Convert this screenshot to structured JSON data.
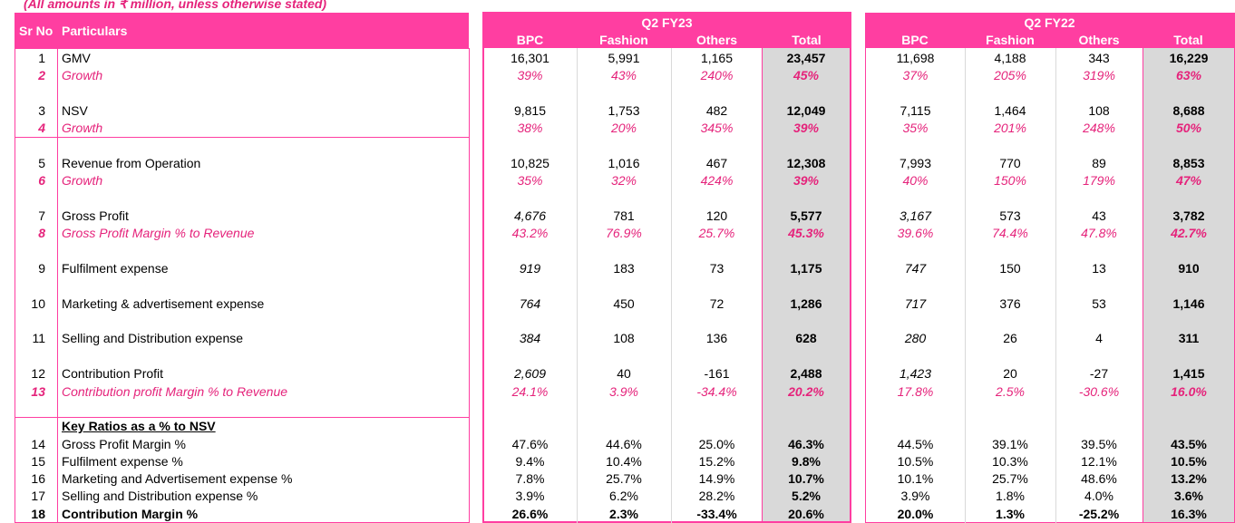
{
  "note": "(All amounts in ₹ million, unless otherwise stated)",
  "header": {
    "sr_no": "Sr No",
    "particulars": "Particulars",
    "blocks": [
      {
        "title": "Q2 FY23",
        "columns": [
          "BPC",
          "Fashion",
          "Others",
          "Total"
        ]
      },
      {
        "title": "Q2 FY22",
        "columns": [
          "BPC",
          "Fashion",
          "Others",
          "Total"
        ]
      }
    ]
  },
  "rows": [
    {
      "sr": "1",
      "label": "GMV",
      "style": "normal",
      "fy23": [
        "16,301",
        "5,991",
        "1,165",
        "23,457"
      ],
      "fy22": [
        "11,698",
        "4,188",
        "343",
        "16,229"
      ]
    },
    {
      "sr": "2",
      "label": "Growth",
      "style": "pink",
      "fy23": [
        "39%",
        "43%",
        "240%",
        "45%"
      ],
      "fy22": [
        "37%",
        "205%",
        "319%",
        "63%"
      ]
    },
    {
      "sr": "3",
      "label": "NSV",
      "style": "normal",
      "fy23": [
        "9,815",
        "1,753",
        "482",
        "12,049"
      ],
      "fy22": [
        "7,115",
        "1,464",
        "108",
        "8,688"
      ]
    },
    {
      "sr": "4",
      "label": "Growth",
      "style": "pink",
      "fy23": [
        "38%",
        "20%",
        "345%",
        "39%"
      ],
      "fy22": [
        "35%",
        "201%",
        "248%",
        "50%"
      ]
    },
    {
      "sr": "5",
      "label": "Revenue from Operation",
      "style": "normal",
      "fy23": [
        "10,825",
        "1,016",
        "467",
        "12,308"
      ],
      "fy22": [
        "7,993",
        "770",
        "89",
        "8,853"
      ]
    },
    {
      "sr": "6",
      "label": "Growth",
      "style": "pink",
      "fy23": [
        "35%",
        "32%",
        "424%",
        "39%"
      ],
      "fy22": [
        "40%",
        "150%",
        "179%",
        "47%"
      ]
    },
    {
      "sr": "7",
      "label": "Gross Profit",
      "style": "normal",
      "fy23": [
        "4,676",
        "781",
        "120",
        "5,577"
      ],
      "fy22": [
        "3,167",
        "573",
        "43",
        "3,782"
      ]
    },
    {
      "sr": "8",
      "label": "Gross Profit Margin % to Revenue",
      "style": "pink",
      "fy23": [
        "43.2%",
        "76.9%",
        "25.7%",
        "45.3%"
      ],
      "fy22": [
        "39.6%",
        "74.4%",
        "47.8%",
        "42.7%"
      ]
    },
    {
      "sr": "9",
      "label": "Fulfilment expense",
      "style": "normal",
      "fy23": [
        "919",
        "183",
        "73",
        "1,175"
      ],
      "fy22": [
        "747",
        "150",
        "13",
        "910"
      ]
    },
    {
      "sr": "10",
      "label": "Marketing & advertisement expense",
      "style": "normal",
      "fy23": [
        "764",
        "450",
        "72",
        "1,286"
      ],
      "fy22": [
        "717",
        "376",
        "53",
        "1,146"
      ]
    },
    {
      "sr": "11",
      "label": "Selling and Distribution expense",
      "style": "normal",
      "fy23": [
        "384",
        "108",
        "136",
        "628"
      ],
      "fy22": [
        "280",
        "26",
        "4",
        "311"
      ]
    },
    {
      "sr": "12",
      "label": "Contribution Profit",
      "style": "normal",
      "fy23": [
        "2,609",
        "40",
        "-161",
        "2,488"
      ],
      "fy22": [
        "1,423",
        "20",
        "-27",
        "1,415"
      ]
    },
    {
      "sr": "13",
      "label": "Contribution profit Margin % to Revenue",
      "style": "pink",
      "fy23": [
        "24.1%",
        "3.9%",
        "-34.4%",
        "20.2%"
      ],
      "fy22": [
        "17.8%",
        "2.5%",
        "-30.6%",
        "16.0%"
      ]
    },
    {
      "sr": "",
      "label": "Key Ratios as a % to NSV",
      "style": "heading",
      "fy23": [
        "",
        "",
        "",
        ""
      ],
      "fy22": [
        "",
        "",
        "",
        ""
      ]
    },
    {
      "sr": "14",
      "label": "Gross Profit Margin %",
      "style": "normal",
      "fy23": [
        "47.6%",
        "44.6%",
        "25.0%",
        "46.3%"
      ],
      "fy22": [
        "44.5%",
        "39.1%",
        "39.5%",
        "43.5%"
      ]
    },
    {
      "sr": "15",
      "label": "Fulfilment expense %",
      "style": "normal",
      "fy23": [
        "9.4%",
        "10.4%",
        "15.2%",
        "9.8%"
      ],
      "fy22": [
        "10.5%",
        "10.3%",
        "12.1%",
        "10.5%"
      ]
    },
    {
      "sr": "16",
      "label": "Marketing and Advertisement expense %",
      "style": "normal",
      "fy23": [
        "7.8%",
        "25.7%",
        "14.9%",
        "10.7%"
      ],
      "fy22": [
        "10.1%",
        "25.7%",
        "48.6%",
        "13.2%"
      ]
    },
    {
      "sr": "17",
      "label": "Selling and Distribution expense %",
      "style": "normal",
      "fy23": [
        "3.9%",
        "6.2%",
        "28.2%",
        "5.2%"
      ],
      "fy22": [
        "3.9%",
        "1.8%",
        "4.0%",
        "3.6%"
      ]
    },
    {
      "sr": "18",
      "label": "Contribution Margin %",
      "style": "bold",
      "fy23": [
        "26.6%",
        "2.3%",
        "-33.4%",
        "20.6%"
      ],
      "fy22": [
        "20.0%",
        "1.3%",
        "-25.2%",
        "16.3%"
      ]
    }
  ]
}
